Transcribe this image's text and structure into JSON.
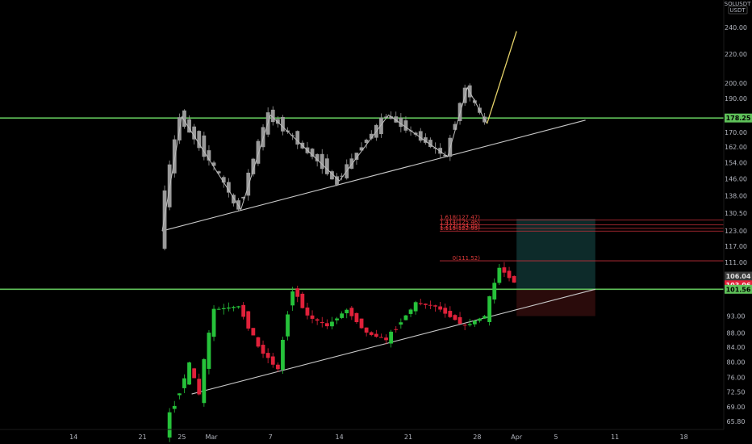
{
  "header": {
    "symbol": "SOLUSDT",
    "currency": "USDT"
  },
  "colors": {
    "background": "#000000",
    "up_candle": "#26c23a",
    "down_candle": "#e0213a",
    "horizontal_level": "#5fc25a",
    "trendline": "#c8c8c8",
    "projection": "#e6d36a",
    "fib": "#c9303a",
    "target_zone": "#0d2b2a",
    "stop_zone": "#2a0b0b"
  },
  "price_tags": [
    {
      "label": "178.25",
      "value": 178.25,
      "bg": "#5fc25a",
      "fg": "#000000"
    },
    {
      "label": "106.04",
      "value": 106.04,
      "bg": "#3a3a3a",
      "fg": "#e0e0e0"
    },
    {
      "label": "103.06",
      "value": 103.06,
      "bg": "#e0213a",
      "fg": "#ffffff"
    },
    {
      "label": "101.56",
      "value": 101.56,
      "bg": "#5fc25a",
      "fg": "#000000"
    }
  ],
  "fib_levels": [
    {
      "label": "1.618(127.47)",
      "value": 127.47
    },
    {
      "label": "1.414(125.46)",
      "value": 125.46
    },
    {
      "label": "1.272(124.05)",
      "value": 124.05
    },
    {
      "label": "1.113(122.95)",
      "value": 122.95
    },
    {
      "label": "0(111.52)",
      "value": 111.52
    }
  ],
  "chart_data": {
    "type": "candlestick",
    "scale": "log",
    "grid": false,
    "y_ticks": [
      "240.00",
      "220.00",
      "200.00",
      "190.00",
      "178.25",
      "170.00",
      "162.00",
      "154.00",
      "146.00",
      "138.00",
      "130.50",
      "123.00",
      "117.00",
      "111.00",
      "106.04",
      "103.06",
      "101.56",
      "93.00",
      "88.00",
      "84.00",
      "80.00",
      "76.00",
      "72.50",
      "69.00",
      "65.80"
    ],
    "y_tick_values": [
      240,
      220,
      200,
      190,
      178.25,
      170,
      162,
      154,
      146,
      138,
      130.5,
      123,
      117,
      111,
      106.04,
      103.06,
      101.56,
      93,
      88,
      84,
      80,
      76,
      72.5,
      69,
      65.8
    ],
    "x_tick_labels": [
      "14",
      "21",
      "25",
      "Mar",
      "7",
      "14",
      "21",
      "28",
      "Apr",
      "5",
      "11",
      "18"
    ],
    "x_tick_days": [
      -14,
      -7,
      -3,
      0,
      6,
      13,
      20,
      27,
      31,
      35,
      41,
      48
    ],
    "horizontal_levels": [
      178.25,
      101.56
    ],
    "upper_panel": {
      "zigzag": [
        {
          "day": -5,
          "price": 123
        },
        {
          "day": -3,
          "price": 179
        },
        {
          "day": 3,
          "price": 132
        },
        {
          "day": 6,
          "price": 180
        },
        {
          "day": 13,
          "price": 145
        },
        {
          "day": 18,
          "price": 180
        },
        {
          "day": 24,
          "price": 157
        },
        {
          "day": 26,
          "price": 197
        },
        {
          "day": 28,
          "price": 175
        },
        {
          "day": 31,
          "price": 237
        }
      ],
      "trendline": [
        {
          "day": -5,
          "price": 123
        },
        {
          "day": 38,
          "price": 177
        }
      ]
    },
    "lower_panel": {
      "trendline": [
        {
          "day": -2,
          "price": 72
        },
        {
          "day": 39,
          "price": 101.56
        }
      ],
      "position": {
        "start_day": 31,
        "end_day": 39,
        "entry": 101.56,
        "target": 128,
        "stop": 93
      }
    }
  }
}
